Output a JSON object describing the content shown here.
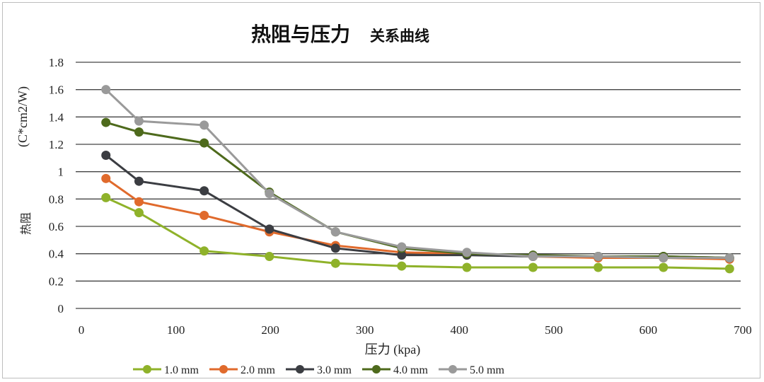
{
  "chart_data": {
    "type": "line",
    "title_main": "热阻与压力",
    "title_sub": "关系曲线",
    "xlabel": "压力 (kpa)",
    "ylabel_unit": "(C*cm2/W)",
    "ylabel": "热阻",
    "xlim": [
      0,
      700
    ],
    "ylim": [
      0,
      1.8
    ],
    "xticks": [
      "0",
      "100",
      "200",
      "300",
      "400",
      "500",
      "600",
      "700"
    ],
    "yticks": [
      "0",
      "0.2",
      "0.4",
      "0.6",
      "0.8",
      "1",
      "1.2",
      "1.4",
      "1.6",
      "1.8"
    ],
    "grid": true,
    "legend_position": "bottom",
    "x": [
      26,
      61,
      130,
      199,
      269,
      339,
      408,
      478,
      547,
      616,
      686
    ],
    "series": [
      {
        "name": "1.0 mm",
        "color": "#8fb22a",
        "values": [
          0.81,
          0.7,
          0.42,
          0.38,
          0.33,
          0.31,
          0.3,
          0.3,
          0.3,
          0.3,
          0.29
        ]
      },
      {
        "name": "2.0 mm",
        "color": "#e06a2c",
        "values": [
          0.95,
          0.78,
          0.68,
          0.56,
          0.46,
          0.41,
          0.4,
          0.38,
          0.37,
          0.37,
          0.36
        ]
      },
      {
        "name": "3.0 mm",
        "color": "#3b3d42",
        "values": [
          1.12,
          0.93,
          0.86,
          0.58,
          0.44,
          0.39,
          0.39,
          0.38,
          0.38,
          0.38,
          0.37
        ]
      },
      {
        "name": "4.0 mm",
        "color": "#4e6a1c",
        "values": [
          1.36,
          1.29,
          1.21,
          0.85,
          0.56,
          0.44,
          0.4,
          0.39,
          0.38,
          0.38,
          0.37
        ]
      },
      {
        "name": "5.0 mm",
        "color": "#9a9a9a",
        "values": [
          1.6,
          1.37,
          1.34,
          0.84,
          0.56,
          0.45,
          0.41,
          0.38,
          0.38,
          0.37,
          0.37
        ]
      }
    ]
  }
}
